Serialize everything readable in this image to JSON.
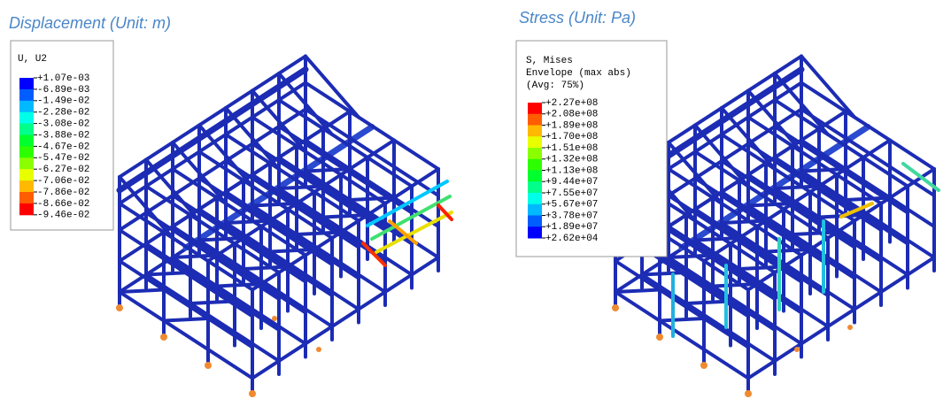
{
  "panels": [
    {
      "title": "Displacement (Unit: m)",
      "legend": {
        "title": [
          "U, U2"
        ],
        "labels": [
          "+1.07e-03",
          "-6.89e-03",
          "-1.49e-02",
          "-2.28e-02",
          "-3.08e-02",
          "-3.88e-02",
          "-4.67e-02",
          "-5.47e-02",
          "-6.27e-02",
          "-7.06e-02",
          "-7.86e-02",
          "-8.66e-02",
          "-9.46e-02"
        ]
      }
    },
    {
      "title": "Stress (Unit: Pa)",
      "legend": {
        "title": [
          "S, Mises",
          "Envelope (max abs)",
          "(Avg: 75%)"
        ],
        "labels": [
          "+2.27e+08",
          "+2.08e+08",
          "+1.89e+08",
          "+1.70e+08",
          "+1.51e+08",
          "+1.32e+08",
          "+1.13e+08",
          "+9.44e+07",
          "+7.55e+07",
          "+5.67e+07",
          "+3.78e+07",
          "+1.89e+07",
          "+2.62e+04"
        ]
      }
    }
  ]
}
